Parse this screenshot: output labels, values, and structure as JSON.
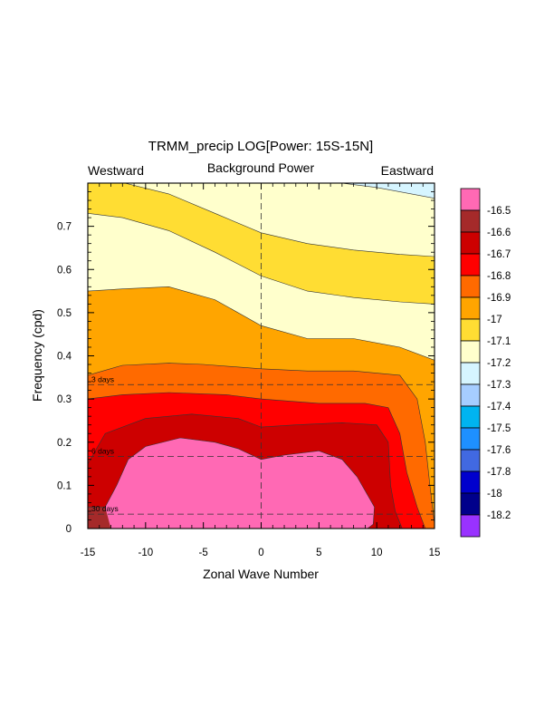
{
  "chart_data": {
    "type": "contour",
    "title": "TRMM_precip LOG[Power: 15S-15N]",
    "subtitle_center": "Background Power",
    "subtitle_left": "Westward",
    "subtitle_right": "Eastward",
    "xlabel": "Zonal Wave Number",
    "ylabel": "Frequency (cpd)",
    "xlim": [
      -15,
      15
    ],
    "ylim": [
      0,
      0.8
    ],
    "x_ticks": [
      -15,
      -10,
      -5,
      0,
      5,
      10,
      15
    ],
    "x_tick_labels": [
      "-15",
      "-10",
      "-5",
      "0",
      "5",
      "10",
      "15"
    ],
    "y_ticks": [
      0,
      0.1,
      0.2,
      0.3,
      0.4,
      0.5,
      0.6,
      0.7
    ],
    "y_tick_labels": [
      "0",
      "0.1",
      "0.2",
      "0.3",
      "0.4",
      "0.5",
      "0.6",
      "0.7"
    ],
    "period_lines": [
      {
        "label": "3 days",
        "frequency": 0.3333
      },
      {
        "label": "6 days",
        "frequency": 0.1667
      },
      {
        "label": "30 days",
        "frequency": 0.0333
      }
    ],
    "colorbar": {
      "levels": [
        "-16.5",
        "-16.6",
        "-16.7",
        "-16.8",
        "-16.9",
        "-17",
        "-17.1",
        "-17.2",
        "-17.3",
        "-17.4",
        "-17.5",
        "-17.6",
        "-17.8",
        "-18",
        "-18.2"
      ],
      "colors": [
        "#ff69b4",
        "#a52a2a",
        "#cd0000",
        "#ff0000",
        "#ff6a00",
        "#ffa500",
        "#ffdd33",
        "#ffffcc",
        "#d6f5ff",
        "#a6cdff",
        "#00b4f0",
        "#1e90ff",
        "#4169e1",
        "#0000cd",
        "#00008b",
        "#9932ff"
      ]
    },
    "fill_colors": {
      "above_-16.5": "#ff69b4",
      "-16.6_to_-16.5": "#a52a2a",
      "-16.7_to_-16.6": "#cd0000",
      "-16.8_to_-16.7": "#ff0000",
      "-16.9_to_-16.8": "#ff6a00",
      "-17_to_-16.9": "#ffa500",
      "-17.1_to_-17": "#ffdd33",
      "-17.2_to_-17.1": "#ffffcc",
      "-17.3_to_-17.2": "#d6f5ff"
    },
    "contours": {
      "b_-16.8": [
        [
          -15,
          0.355
        ],
        [
          -12,
          0.378
        ],
        [
          -8,
          0.383
        ],
        [
          -5,
          0.38
        ],
        [
          0,
          0.37
        ],
        [
          4,
          0.365
        ],
        [
          8,
          0.365
        ],
        [
          12,
          0.355
        ],
        [
          13.5,
          0.3
        ],
        [
          14.2,
          0.2
        ],
        [
          14.6,
          0.1
        ],
        [
          15,
          0.01
        ]
      ],
      "b_-16.7": [
        [
          -15,
          0.3
        ],
        [
          -12,
          0.31
        ],
        [
          -8,
          0.315
        ],
        [
          -3,
          0.31
        ],
        [
          0,
          0.3
        ],
        [
          5,
          0.29
        ],
        [
          9,
          0.29
        ],
        [
          11,
          0.28
        ],
        [
          12,
          0.22
        ],
        [
          12.6,
          0.13
        ],
        [
          13.5,
          0.05
        ],
        [
          14.2,
          0
        ]
      ],
      "b_-16.6": [
        [
          -15,
          0.15
        ],
        [
          -13.5,
          0.22
        ],
        [
          -10,
          0.255
        ],
        [
          -6,
          0.265
        ],
        [
          -2,
          0.255
        ],
        [
          0,
          0.235
        ],
        [
          3,
          0.24
        ],
        [
          7,
          0.245
        ],
        [
          10,
          0.24
        ],
        [
          11,
          0.2
        ],
        [
          11.2,
          0.1
        ],
        [
          11.6,
          0.04
        ],
        [
          12.2,
          0
        ]
      ],
      "b_-16.5": [
        [
          -15,
          0.05
        ],
        [
          -13.5,
          0.05
        ],
        [
          -12.5,
          0.1
        ],
        [
          -11.5,
          0.16
        ],
        [
          -10,
          0.19
        ],
        [
          -7,
          0.21
        ],
        [
          -4,
          0.2
        ],
        [
          -2,
          0.185
        ],
        [
          0,
          0.16
        ],
        [
          2,
          0.17
        ],
        [
          5,
          0.18
        ],
        [
          7,
          0.16
        ],
        [
          8.3,
          0.12
        ],
        [
          9.8,
          0.05
        ],
        [
          9.7,
          0.01
        ],
        [
          9.2,
          0
        ]
      ],
      "b_-16.9": [
        [
          -15,
          0.55
        ],
        [
          -12,
          0.555
        ],
        [
          -8,
          0.56
        ],
        [
          -4,
          0.53
        ],
        [
          0,
          0.47
        ],
        [
          4,
          0.44
        ],
        [
          8,
          0.44
        ],
        [
          12,
          0.42
        ],
        [
          15,
          0.39
        ]
      ],
      "b_-17": [
        [
          -15,
          0.73
        ],
        [
          -12,
          0.72
        ],
        [
          -8,
          0.69
        ],
        [
          -4,
          0.64
        ],
        [
          0,
          0.585
        ],
        [
          4,
          0.55
        ],
        [
          8,
          0.535
        ],
        [
          12,
          0.525
        ],
        [
          15,
          0.52
        ]
      ],
      "b_-17.1": [
        [
          -11.8,
          0.8
        ],
        [
          -8,
          0.775
        ],
        [
          -4,
          0.73
        ],
        [
          0,
          0.685
        ],
        [
          4,
          0.66
        ],
        [
          8,
          0.645
        ],
        [
          12,
          0.635
        ],
        [
          15,
          0.63
        ]
      ],
      "b_-17.2": [
        [
          7,
          0.8
        ],
        [
          10,
          0.79
        ],
        [
          13,
          0.775
        ],
        [
          15,
          0.765
        ]
      ]
    }
  }
}
